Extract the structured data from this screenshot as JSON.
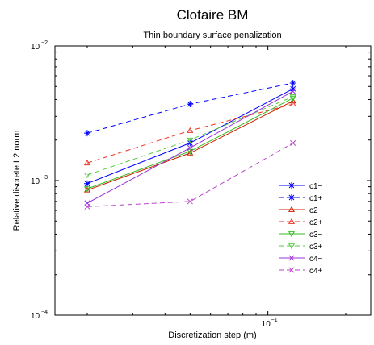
{
  "chart_data": {
    "type": "line",
    "title": "Clotaire BM",
    "subtitle": "Thin boundary surface penalization",
    "xlabel": "Discretization step (m)",
    "ylabel": "Relative discrete L2 norm",
    "xscale": "log",
    "yscale": "log",
    "xlim": [
      0.015,
      0.25
    ],
    "ylim": [
      0.0001,
      0.01
    ],
    "x_ticks": [
      {
        "value": 0.1,
        "base": "10",
        "exp": "−1"
      }
    ],
    "y_ticks": [
      {
        "value": 0.01,
        "base": "10",
        "exp": "−2"
      },
      {
        "value": 0.001,
        "base": "10",
        "exp": "−3"
      },
      {
        "value": 0.0001,
        "base": "10",
        "exp": "−4"
      }
    ],
    "grid": false,
    "legend_position": "right",
    "x": [
      0.02,
      0.05,
      0.125
    ],
    "series": [
      {
        "name": "c1−",
        "color": "#0000ff",
        "dash": "solid",
        "marker": "star",
        "values": [
          0.00095,
          0.0019,
          0.0048
        ]
      },
      {
        "name": "c1+",
        "color": "#0000ff",
        "dash": "dashed",
        "marker": "star",
        "values": [
          0.00225,
          0.0037,
          0.0053
        ]
      },
      {
        "name": "c2−",
        "color": "#cc2200",
        "dash": "solid",
        "marker": "triangle-up",
        "values": [
          0.00085,
          0.0016,
          0.0039
        ]
      },
      {
        "name": "c2+",
        "color": "#ee3322",
        "dash": "dashed",
        "marker": "triangle-up",
        "values": [
          0.00135,
          0.00235,
          0.0037
        ]
      },
      {
        "name": "c3−",
        "color": "#33bb22",
        "dash": "solid",
        "marker": "triangle-down",
        "values": [
          0.00087,
          0.00165,
          0.0041
        ]
      },
      {
        "name": "c3+",
        "color": "#55cc44",
        "dash": "dashed",
        "marker": "triangle-down",
        "values": [
          0.0011,
          0.002,
          0.0042
        ]
      },
      {
        "name": "c4−",
        "color": "#9933dd",
        "dash": "solid",
        "marker": "x",
        "values": [
          0.00068,
          0.00175,
          0.0046
        ]
      },
      {
        "name": "c4+",
        "color": "#bb44cc",
        "dash": "dashed",
        "marker": "x",
        "values": [
          0.00064,
          0.0007,
          0.0019
        ]
      }
    ]
  }
}
